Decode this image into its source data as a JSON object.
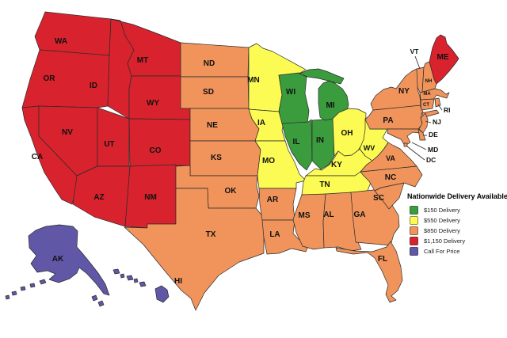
{
  "legend": {
    "title": "Nationwide Delivery Available",
    "items": [
      {
        "id": "tier150",
        "label": "$150 Delivery",
        "color": "#3b9c3e"
      },
      {
        "id": "tier550",
        "label": "$550 Delivery",
        "color": "#fbfb53"
      },
      {
        "id": "tier850",
        "label": "$850 Delivery",
        "color": "#f0945c"
      },
      {
        "id": "tier1150",
        "label": "$1,150 Delivery",
        "color": "#d8232e"
      },
      {
        "id": "call",
        "label": "Call For Price",
        "color": "#6057a7"
      }
    ]
  },
  "map": {
    "states": [
      {
        "id": "WA",
        "label": "WA",
        "tier": "tier1150"
      },
      {
        "id": "OR",
        "label": "OR",
        "tier": "tier1150"
      },
      {
        "id": "CA",
        "label": "CA",
        "tier": "tier1150"
      },
      {
        "id": "NV",
        "label": "NV",
        "tier": "tier1150"
      },
      {
        "id": "ID",
        "label": "ID",
        "tier": "tier1150"
      },
      {
        "id": "MT",
        "label": "MT",
        "tier": "tier1150"
      },
      {
        "id": "WY",
        "label": "WY",
        "tier": "tier1150"
      },
      {
        "id": "UT",
        "label": "UT",
        "tier": "tier1150"
      },
      {
        "id": "CO",
        "label": "CO",
        "tier": "tier1150"
      },
      {
        "id": "AZ",
        "label": "AZ",
        "tier": "tier1150"
      },
      {
        "id": "NM",
        "label": "NM",
        "tier": "tier1150"
      },
      {
        "id": "ND",
        "label": "ND",
        "tier": "tier850"
      },
      {
        "id": "SD",
        "label": "SD",
        "tier": "tier850"
      },
      {
        "id": "NE",
        "label": "NE",
        "tier": "tier850"
      },
      {
        "id": "KS",
        "label": "KS",
        "tier": "tier850"
      },
      {
        "id": "OK",
        "label": "OK",
        "tier": "tier850"
      },
      {
        "id": "TX",
        "label": "TX",
        "tier": "tier850"
      },
      {
        "id": "MN",
        "label": "MN",
        "tier": "tier550"
      },
      {
        "id": "IA",
        "label": "IA",
        "tier": "tier550"
      },
      {
        "id": "MO",
        "label": "MO",
        "tier": "tier550"
      },
      {
        "id": "AR",
        "label": "AR",
        "tier": "tier850"
      },
      {
        "id": "LA",
        "label": "LA",
        "tier": "tier850"
      },
      {
        "id": "WI",
        "label": "WI",
        "tier": "tier150"
      },
      {
        "id": "IL",
        "label": "IL",
        "tier": "tier150"
      },
      {
        "id": "IN",
        "label": "IN",
        "tier": "tier150"
      },
      {
        "id": "MI",
        "label": "MI",
        "tier": "tier150"
      },
      {
        "id": "OH",
        "label": "OH",
        "tier": "tier550"
      },
      {
        "id": "KY",
        "label": "KY",
        "tier": "tier550"
      },
      {
        "id": "TN",
        "label": "TN",
        "tier": "tier550"
      },
      {
        "id": "WV",
        "label": "WV",
        "tier": "tier550"
      },
      {
        "id": "MS",
        "label": "MS",
        "tier": "tier850"
      },
      {
        "id": "AL",
        "label": "AL",
        "tier": "tier850"
      },
      {
        "id": "GA",
        "label": "GA",
        "tier": "tier850"
      },
      {
        "id": "FL",
        "label": "FL",
        "tier": "tier850"
      },
      {
        "id": "SC",
        "label": "SC",
        "tier": "tier850"
      },
      {
        "id": "NC",
        "label": "NC",
        "tier": "tier850"
      },
      {
        "id": "VA",
        "label": "VA",
        "tier": "tier850"
      },
      {
        "id": "PA",
        "label": "PA",
        "tier": "tier850"
      },
      {
        "id": "NY",
        "label": "NY",
        "tier": "tier850"
      },
      {
        "id": "VT",
        "label": "VT",
        "tier": "tier850"
      },
      {
        "id": "NH",
        "label": "NH",
        "tier": "tier850"
      },
      {
        "id": "ME",
        "label": "ME",
        "tier": "tier1150"
      },
      {
        "id": "MA",
        "label": "MA",
        "tier": "tier850"
      },
      {
        "id": "CT",
        "label": "CT",
        "tier": "tier850"
      },
      {
        "id": "RI",
        "label": "RI",
        "tier": "tier850"
      },
      {
        "id": "NJ",
        "label": "NJ",
        "tier": "tier850"
      },
      {
        "id": "DE",
        "label": "DE",
        "tier": "tier850"
      },
      {
        "id": "MD",
        "label": "MD",
        "tier": "tier850"
      },
      {
        "id": "DC",
        "label": "DC",
        "tier": "tier850"
      },
      {
        "id": "AK",
        "label": "AK",
        "tier": "call"
      },
      {
        "id": "HI",
        "label": "HI",
        "tier": "call"
      }
    ]
  }
}
